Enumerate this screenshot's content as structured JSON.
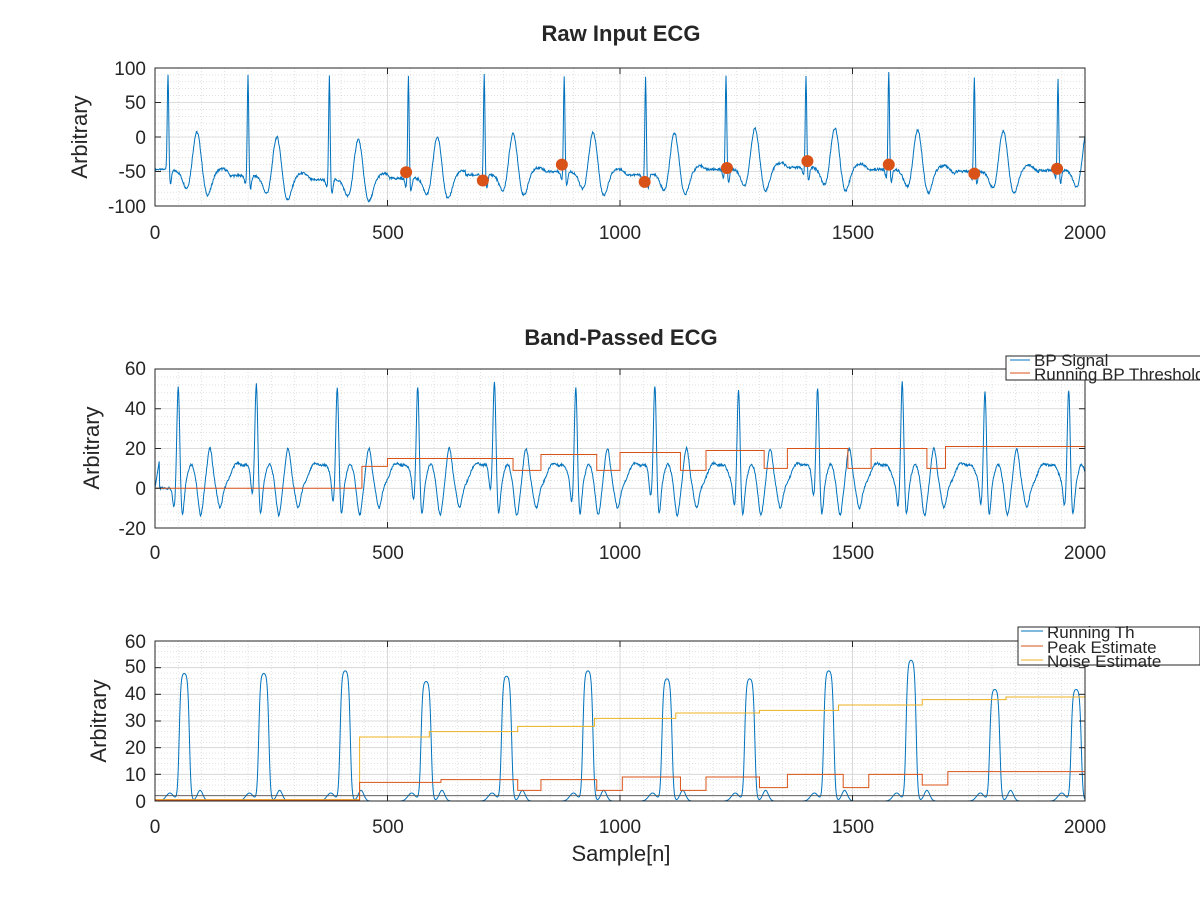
{
  "colors": {
    "series1": "#0072BD",
    "series2": "#D95319",
    "series3": "#EDB120",
    "axis": "#262626",
    "grid": "#d9d9d9"
  },
  "chart_data": [
    {
      "type": "line",
      "title": "Raw Input ECG",
      "xlabel": "",
      "ylabel": "Arbitrary",
      "xlim": [
        0,
        2000
      ],
      "ylim": [
        -100,
        100
      ],
      "xticks": [
        0,
        500,
        1000,
        1500,
        2000
      ],
      "yticks": [
        -100,
        -50,
        0,
        50,
        100
      ],
      "ytick_labels": [
        "-100",
        "-50",
        "0",
        "50",
        "100"
      ],
      "grid": true,
      "legend": null,
      "beats": [
        {
          "r": 28,
          "base": -48,
          "peak": 96
        },
        {
          "r": 200,
          "base": -56,
          "peak": 94
        },
        {
          "r": 375,
          "base": -62,
          "peak": 92
        },
        {
          "r": 545,
          "base": -60,
          "peak": 92
        },
        {
          "r": 708,
          "base": -55,
          "peak": 94
        },
        {
          "r": 880,
          "base": -50,
          "peak": 93
        },
        {
          "r": 1055,
          "base": -55,
          "peak": 90
        },
        {
          "r": 1228,
          "base": -47,
          "peak": 93
        },
        {
          "r": 1400,
          "base": -44,
          "peak": 93
        },
        {
          "r": 1578,
          "base": -47,
          "peak": 100
        },
        {
          "r": 1762,
          "base": -50,
          "peak": 92
        },
        {
          "r": 1942,
          "base": -48,
          "peak": 88
        }
      ],
      "markers": {
        "name": "Detected R peaks",
        "x": [
          540,
          705,
          875,
          1053,
          1230,
          1403,
          1578,
          1762,
          1940
        ],
        "y": [
          -51,
          -63,
          -40,
          -65,
          -45,
          -35,
          -40,
          -53,
          -46
        ]
      }
    },
    {
      "type": "line",
      "title": "Band-Passed ECG",
      "xlabel": "",
      "ylabel": "Arbitrary",
      "xlim": [
        0,
        2000
      ],
      "ylim": [
        -20,
        60
      ],
      "xticks": [
        0,
        500,
        1000,
        1500,
        2000
      ],
      "yticks": [
        -20,
        0,
        20,
        40,
        60
      ],
      "ytick_labels": [
        "-20",
        "0",
        "20",
        "40",
        "60"
      ],
      "grid": true,
      "legend": {
        "position": "top-right",
        "entries": [
          "BP Signal",
          "Running BP Threshold"
        ]
      },
      "signal_peaks": [
        {
          "x": 50,
          "peak": 52
        },
        {
          "x": 218,
          "peak": 51
        },
        {
          "x": 392,
          "peak": 51
        },
        {
          "x": 565,
          "peak": 51
        },
        {
          "x": 730,
          "peak": 51
        },
        {
          "x": 905,
          "peak": 51
        },
        {
          "x": 1075,
          "peak": 51
        },
        {
          "x": 1255,
          "peak": 50
        },
        {
          "x": 1425,
          "peak": 50
        },
        {
          "x": 1607,
          "peak": 54
        },
        {
          "x": 1785,
          "peak": 49
        },
        {
          "x": 1965,
          "peak": 50
        }
      ],
      "threshold_steps": [
        {
          "x": 0,
          "y": 0
        },
        {
          "x": 445,
          "y": 11
        },
        {
          "x": 500,
          "y": 15
        },
        {
          "x": 770,
          "y": 9
        },
        {
          "x": 830,
          "y": 17
        },
        {
          "x": 950,
          "y": 9
        },
        {
          "x": 1000,
          "y": 18
        },
        {
          "x": 1130,
          "y": 9
        },
        {
          "x": 1185,
          "y": 19
        },
        {
          "x": 1310,
          "y": 10
        },
        {
          "x": 1360,
          "y": 20
        },
        {
          "x": 1490,
          "y": 10
        },
        {
          "x": 1540,
          "y": 20
        },
        {
          "x": 1660,
          "y": 10
        },
        {
          "x": 1700,
          "y": 21
        },
        {
          "x": 2000,
          "y": 21
        }
      ]
    },
    {
      "type": "line",
      "title": "",
      "xlabel": "Sample[n]",
      "ylabel": "Arbitrary",
      "xlim": [
        0,
        2000
      ],
      "ylim": [
        0,
        60
      ],
      "xticks": [
        0,
        500,
        1000,
        1500,
        2000
      ],
      "yticks": [
        0,
        10,
        20,
        30,
        40,
        50,
        60
      ],
      "ytick_labels": [
        "0",
        "10",
        "20",
        "30",
        "40",
        "50",
        "60"
      ],
      "grid": true,
      "legend": {
        "position": "top-right",
        "entries": [
          "Running Th",
          "Peak Estimate",
          "Noise Estimate"
        ]
      },
      "pulses": [
        {
          "x": 62,
          "height": 48
        },
        {
          "x": 233,
          "height": 48
        },
        {
          "x": 408,
          "height": 49
        },
        {
          "x": 582,
          "height": 45
        },
        {
          "x": 755,
          "height": 47
        },
        {
          "x": 930,
          "height": 49
        },
        {
          "x": 1100,
          "height": 46
        },
        {
          "x": 1278,
          "height": 46
        },
        {
          "x": 1448,
          "height": 49
        },
        {
          "x": 1625,
          "height": 53
        },
        {
          "x": 1805,
          "height": 42
        },
        {
          "x": 1980,
          "height": 42
        }
      ],
      "peak_estimate_steps": [
        {
          "x": 0,
          "y": 0.3
        },
        {
          "x": 440,
          "y": 7
        },
        {
          "x": 615,
          "y": 8
        },
        {
          "x": 780,
          "y": 4
        },
        {
          "x": 830,
          "y": 8
        },
        {
          "x": 950,
          "y": 4
        },
        {
          "x": 1005,
          "y": 9
        },
        {
          "x": 1130,
          "y": 4
        },
        {
          "x": 1185,
          "y": 9
        },
        {
          "x": 1300,
          "y": 5
        },
        {
          "x": 1360,
          "y": 10
        },
        {
          "x": 1480,
          "y": 5
        },
        {
          "x": 1535,
          "y": 10
        },
        {
          "x": 1650,
          "y": 6
        },
        {
          "x": 1705,
          "y": 11
        },
        {
          "x": 2000,
          "y": 11
        }
      ],
      "noise_estimate_steps": [
        {
          "x": 0,
          "y": 0.5
        },
        {
          "x": 440,
          "y": 24
        },
        {
          "x": 590,
          "y": 26
        },
        {
          "x": 780,
          "y": 28
        },
        {
          "x": 945,
          "y": 31
        },
        {
          "x": 1120,
          "y": 33
        },
        {
          "x": 1300,
          "y": 34
        },
        {
          "x": 1470,
          "y": 36
        },
        {
          "x": 1650,
          "y": 38
        },
        {
          "x": 1830,
          "y": 39
        },
        {
          "x": 2000,
          "y": 39
        }
      ],
      "running_th_level": 2
    }
  ]
}
